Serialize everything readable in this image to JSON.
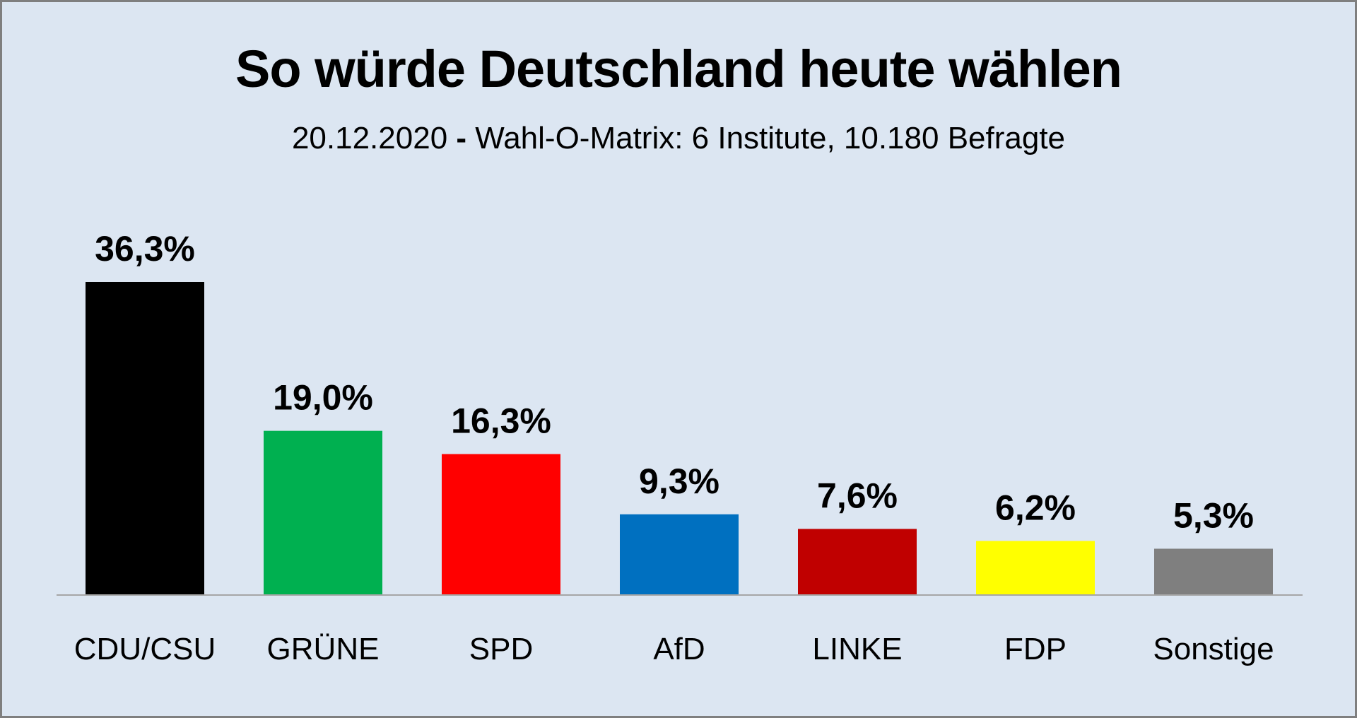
{
  "chart_data": {
    "type": "bar",
    "title": "So würde Deutschland heute wählen",
    "subtitle": {
      "date": "20.12.2020",
      "separator": "-",
      "source": "Wahl-O-Matrix: 6 Institute, 10.180 Befragte"
    },
    "xlabel": "",
    "ylabel": "",
    "ylim": [
      0,
      36.3
    ],
    "grid": false,
    "legend": "none",
    "categories": [
      "CDU/CSU",
      "GRÜNE",
      "SPD",
      "AfD",
      "LINKE",
      "FDP",
      "Sonstige"
    ],
    "values": [
      36.3,
      19.0,
      16.3,
      9.3,
      7.6,
      6.2,
      5.3
    ],
    "value_labels": [
      "36,3%",
      "19,0%",
      "16,3%",
      "9,3%",
      "7,6%",
      "6,2%",
      "5,3%"
    ],
    "colors": [
      "#000000",
      "#00b050",
      "#ff0000",
      "#0070c0",
      "#c00000",
      "#ffff00",
      "#7f7f7f"
    ],
    "axis_color": "#a6a6a6",
    "background": "#dce6f2"
  }
}
